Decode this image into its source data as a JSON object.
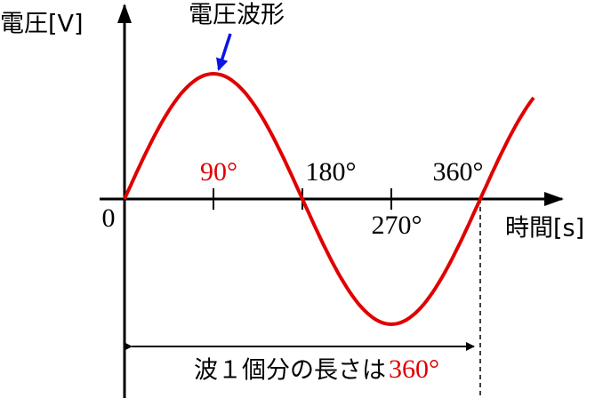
{
  "y_axis_label": "電圧[V]",
  "x_axis_label": "時間[s]",
  "curve_label": "電圧波形",
  "origin_label": "0",
  "angle_labels": [
    "90°",
    "180°",
    "270°",
    "360°"
  ],
  "caption": {
    "text": "波１個分の長さは",
    "highlight": "360°"
  }
}
